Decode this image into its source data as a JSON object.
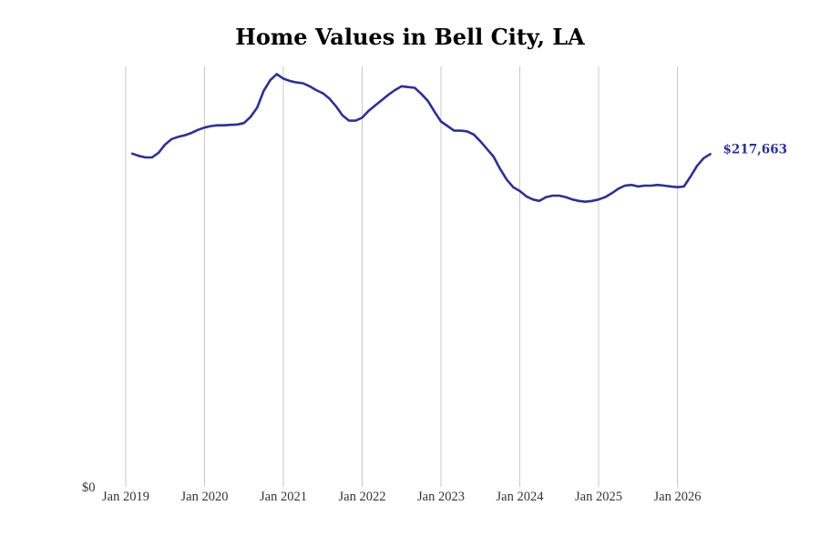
{
  "chart_data": {
    "type": "line",
    "title": "Home Values in Bell City, LA",
    "xlabel": "",
    "ylabel": "",
    "x_start": "Jan 2019",
    "x_ticks": [
      "Jan 2019",
      "Jan 2020",
      "Jan 2021",
      "Jan 2022",
      "Jan 2023",
      "Jan 2024",
      "Jan 2025",
      "Jan 2026"
    ],
    "y_ticks": [
      "$0"
    ],
    "ylim": [
      0,
      275000
    ],
    "grid": "vertical",
    "legend": "none",
    "end_label": "$217,663",
    "series": [
      {
        "color": "#2e3190",
        "x": [
          "Feb 2019",
          "Mar 2019",
          "Apr 2019",
          "May 2019",
          "Jun 2019",
          "Jul 2019",
          "Aug 2019",
          "Sep 2019",
          "Oct 2019",
          "Nov 2019",
          "Dec 2019",
          "Jan 2020",
          "Feb 2020",
          "Mar 2020",
          "Apr 2020",
          "May 2020",
          "Jun 2020",
          "Jul 2020",
          "Aug 2020",
          "Sep 2020",
          "Oct 2020",
          "Nov 2020",
          "Dec 2020",
          "Jan 2021",
          "Feb 2021",
          "Mar 2021",
          "Apr 2021",
          "May 2021",
          "Jun 2021",
          "Jul 2021",
          "Aug 2021",
          "Sep 2021",
          "Oct 2021",
          "Nov 2021",
          "Dec 2021",
          "Jan 2022",
          "Feb 2022",
          "Mar 2022",
          "Apr 2022",
          "May 2022",
          "Jun 2022",
          "Jul 2022",
          "Aug 2022",
          "Sep 2022",
          "Oct 2022",
          "Nov 2022",
          "Dec 2022",
          "Jan 2023",
          "Feb 2023",
          "Mar 2023",
          "Apr 2023",
          "May 2023",
          "Jun 2023",
          "Jul 2023",
          "Aug 2023",
          "Sep 2023",
          "Oct 2023",
          "Nov 2023",
          "Dec 2023",
          "Jan 2024",
          "Feb 2024",
          "Mar 2024",
          "Apr 2024",
          "May 2024",
          "Jun 2024",
          "Jul 2024",
          "Aug 2024",
          "Sep 2024",
          "Oct 2024",
          "Nov 2024",
          "Dec 2024",
          "Jan 2025",
          "Feb 2025",
          "Mar 2025",
          "Apr 2025",
          "May 2025",
          "Jun 2025",
          "Jul 2025",
          "Aug 2025",
          "Sep 2025",
          "Oct 2025",
          "Nov 2025",
          "Dec 2025",
          "Jan 2026",
          "Feb 2026",
          "Mar 2026",
          "Apr 2026",
          "May 2026",
          "Jun 2026"
        ],
        "values": [
          218000,
          216500,
          215500,
          215500,
          218500,
          224000,
          227500,
          229000,
          230000,
          231500,
          233500,
          235000,
          236000,
          236500,
          236500,
          236800,
          237000,
          238000,
          242000,
          248000,
          259000,
          266000,
          270000,
          267000,
          265500,
          264500,
          264000,
          262000,
          259500,
          257500,
          254000,
          249000,
          243000,
          239500,
          239500,
          241500,
          246000,
          249500,
          253000,
          256500,
          259500,
          262000,
          261500,
          261000,
          257000,
          252500,
          245500,
          239000,
          236000,
          233000,
          233000,
          232500,
          230500,
          226000,
          221000,
          216000,
          208000,
          201000,
          196000,
          193500,
          190000,
          188000,
          187000,
          189500,
          190500,
          190500,
          189500,
          188000,
          187000,
          186500,
          187000,
          188000,
          189500,
          192000,
          195000,
          197000,
          197500,
          196500,
          197000,
          197000,
          197500,
          197000,
          196500,
          196000,
          196500,
          203000,
          210000,
          215000,
          217663
        ]
      }
    ]
  }
}
